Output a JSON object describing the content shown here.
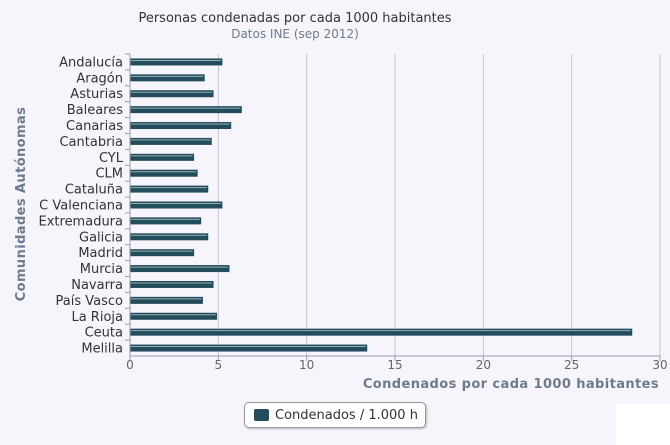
{
  "chart_data": {
    "type": "bar",
    "orientation": "horizontal",
    "title": "Personas condenadas por cada 1000 habitantes",
    "subtitle": "Datos INE (sep 2012)",
    "xlabel": "Condenados por cada 1000 habitantes",
    "ylabel": "Comunidades Autónomas",
    "xlim": [
      0,
      30
    ],
    "xticks": [
      "0",
      "5",
      "10",
      "15",
      "20",
      "25",
      "30"
    ],
    "grid": true,
    "legend_position": "bottom-center",
    "categories": [
      "Andalucía",
      "Aragón",
      "Asturias",
      "Baleares",
      "Canarias",
      "Cantabria",
      "CYL",
      "CLM",
      "Cataluña",
      "C Valenciana",
      "Extremadura",
      "Galicia",
      "Madrid",
      "Murcia",
      "Navarra",
      "País Vasco",
      "La Rioja",
      "Ceuta",
      "Melilla"
    ],
    "series": [
      {
        "name": "Condenados / 1.000 h",
        "values": [
          5.2,
          4.2,
          4.7,
          6.3,
          5.7,
          4.6,
          3.6,
          3.8,
          4.4,
          5.2,
          4.0,
          4.4,
          3.6,
          5.6,
          4.7,
          4.1,
          4.9,
          28.4,
          13.4
        ]
      }
    ],
    "colors": {
      "bar": "#244d5c",
      "bar_highlight": "#e8eef3",
      "grid": "#c6c6d4",
      "axis": "#9aa0ad",
      "background": "#f5f5fb"
    }
  }
}
